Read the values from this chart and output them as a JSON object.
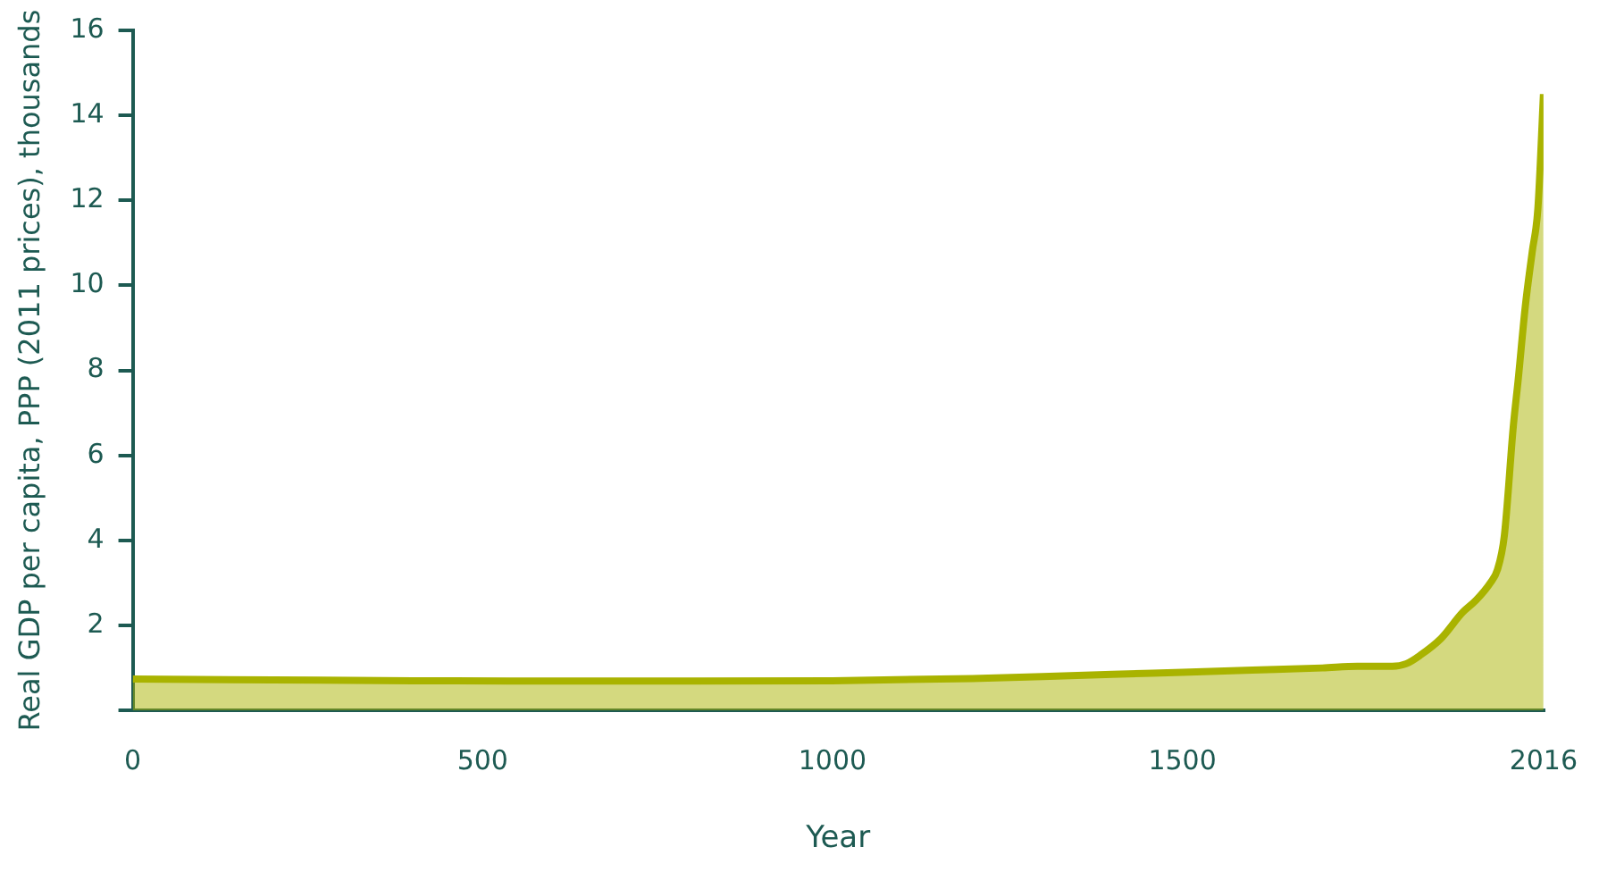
{
  "chart_data": {
    "type": "area",
    "xlabel": "Year",
    "ylabel": "Real GDP per capita, PPP (2011 prices), thousands",
    "x": [
      0,
      200,
      400,
      600,
      800,
      1000,
      1200,
      1300,
      1400,
      1500,
      1600,
      1700,
      1750,
      1800,
      1820,
      1840,
      1870,
      1900,
      1920,
      1940,
      1950,
      1960,
      1973,
      1980,
      1990,
      2000,
      2008,
      2016
    ],
    "series": [
      {
        "color": "#a9b300",
        "values": [
          0.74,
          0.72,
          0.7,
          0.69,
          0.69,
          0.7,
          0.75,
          0.8,
          0.85,
          0.9,
          0.95,
          1.0,
          1.04,
          1.04,
          1.1,
          1.3,
          1.7,
          2.3,
          2.6,
          3.0,
          3.3,
          4.1,
          6.7,
          7.8,
          9.5,
          10.8,
          11.8,
          14.5
        ]
      }
    ],
    "xlim": [
      0,
      2016
    ],
    "xticks": [
      0,
      500,
      1000,
      1500,
      2016
    ],
    "ylim": [
      0,
      16
    ],
    "yticks": [
      {
        "value": 0,
        "label": null
      },
      2,
      4,
      6,
      8,
      10,
      12,
      14,
      16
    ],
    "grid": false,
    "legend": false
  }
}
